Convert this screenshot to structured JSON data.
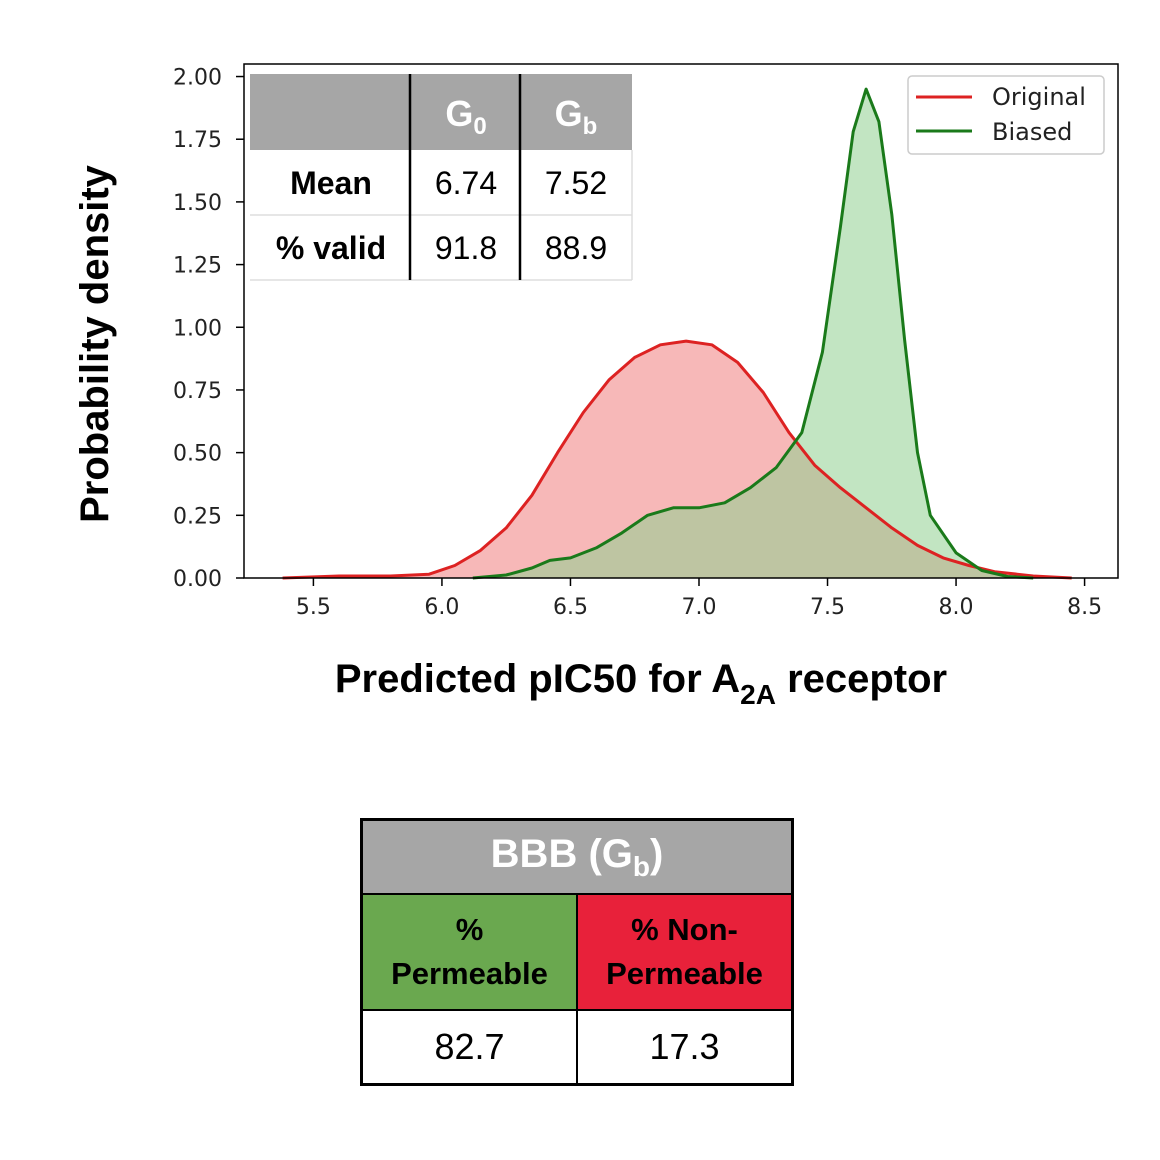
{
  "chart_data": {
    "type": "area",
    "xlabel_main": "Predicted pIC50 for A",
    "xlabel_sub": "2A",
    "xlabel_tail": " receptor",
    "ylabel": "Probability density",
    "xlim": [
      5.23,
      8.63
    ],
    "ylim": [
      0,
      2.05
    ],
    "x_ticks": [
      "5.5",
      "6.0",
      "6.5",
      "7.0",
      "7.5",
      "8.0",
      "8.5"
    ],
    "y_ticks": [
      "0.00",
      "0.25",
      "0.50",
      "0.75",
      "1.00",
      "1.25",
      "1.50",
      "1.75",
      "2.00"
    ],
    "legend_position": "top-right",
    "series": [
      {
        "name": "Original",
        "line_color": "#dd2222",
        "fill_color": "#f4a0a0",
        "points": [
          [
            5.38,
            0.0
          ],
          [
            5.6,
            0.008
          ],
          [
            5.8,
            0.008
          ],
          [
            5.95,
            0.015
          ],
          [
            6.05,
            0.05
          ],
          [
            6.15,
            0.11
          ],
          [
            6.25,
            0.2
          ],
          [
            6.35,
            0.33
          ],
          [
            6.45,
            0.5
          ],
          [
            6.55,
            0.66
          ],
          [
            6.65,
            0.79
          ],
          [
            6.75,
            0.88
          ],
          [
            6.85,
            0.93
          ],
          [
            6.95,
            0.945
          ],
          [
            7.05,
            0.93
          ],
          [
            7.15,
            0.86
          ],
          [
            7.25,
            0.74
          ],
          [
            7.35,
            0.58
          ],
          [
            7.45,
            0.45
          ],
          [
            7.55,
            0.36
          ],
          [
            7.65,
            0.28
          ],
          [
            7.75,
            0.2
          ],
          [
            7.85,
            0.13
          ],
          [
            7.95,
            0.08
          ],
          [
            8.05,
            0.05
          ],
          [
            8.15,
            0.025
          ],
          [
            8.3,
            0.008
          ],
          [
            8.45,
            0.0
          ]
        ]
      },
      {
        "name": "Biased",
        "line_color": "#1a7a1a",
        "fill_color": "#8fcf8f",
        "points": [
          [
            6.12,
            0.0
          ],
          [
            6.25,
            0.012
          ],
          [
            6.35,
            0.04
          ],
          [
            6.42,
            0.07
          ],
          [
            6.5,
            0.08
          ],
          [
            6.6,
            0.12
          ],
          [
            6.7,
            0.18
          ],
          [
            6.8,
            0.25
          ],
          [
            6.9,
            0.28
          ],
          [
            7.0,
            0.28
          ],
          [
            7.1,
            0.3
          ],
          [
            7.2,
            0.36
          ],
          [
            7.3,
            0.44
          ],
          [
            7.4,
            0.58
          ],
          [
            7.48,
            0.9
          ],
          [
            7.55,
            1.4
          ],
          [
            7.6,
            1.78
          ],
          [
            7.65,
            1.95
          ],
          [
            7.7,
            1.82
          ],
          [
            7.75,
            1.45
          ],
          [
            7.8,
            0.95
          ],
          [
            7.85,
            0.5
          ],
          [
            7.9,
            0.25
          ],
          [
            8.0,
            0.1
          ],
          [
            8.1,
            0.03
          ],
          [
            8.2,
            0.006
          ],
          [
            8.3,
            0.0
          ]
        ]
      }
    ]
  },
  "inset_table": {
    "header_blank": "",
    "col1": "G",
    "col1_sub": "0",
    "col2": "G",
    "col2_sub": "b",
    "rows": [
      {
        "label": "Mean",
        "v1": "6.74",
        "v2": "7.52"
      },
      {
        "label": "% valid",
        "v1": "91.8",
        "v2": "88.9"
      }
    ],
    "header_color": "#a6a6a6"
  },
  "bbb_table": {
    "title_pre": "BBB (G",
    "title_sub": "b",
    "title_post": ")",
    "perm_line1": "%",
    "perm_line2": "Permeable",
    "nonperm_line1": "% Non-",
    "nonperm_line2": "Permeable",
    "perm_value": "82.7",
    "nonperm_value": "17.3",
    "perm_color": "#6aa84f",
    "nonperm_color": "#e8213a"
  }
}
